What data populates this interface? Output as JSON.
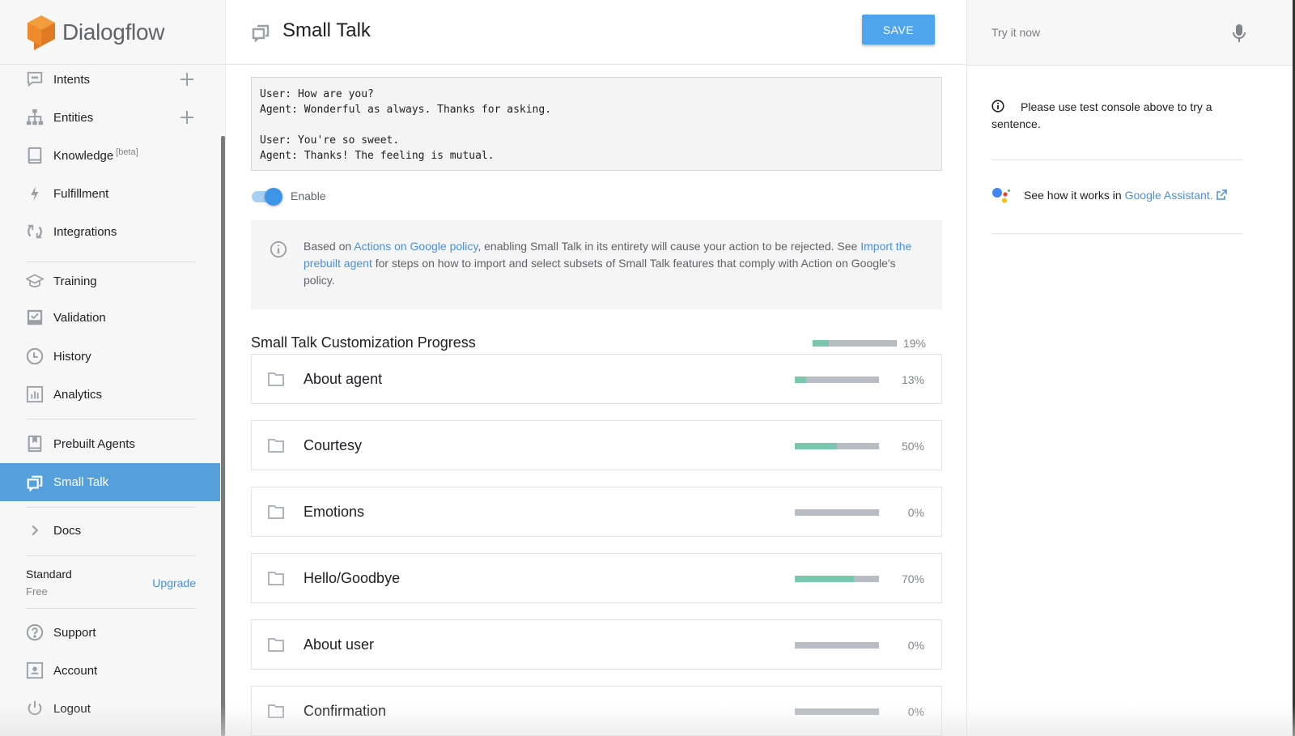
{
  "app": {
    "name": "Dialogflow",
    "brand_color": "#f0842c"
  },
  "sidebar": {
    "items": [
      {
        "label": "Intents",
        "icon": "chat-icon",
        "has_add": true
      },
      {
        "label": "Entities",
        "icon": "hierarchy-icon",
        "has_add": true
      },
      {
        "label": "Knowledge",
        "badge": "[beta]",
        "icon": "book-icon"
      },
      {
        "label": "Fulfillment",
        "icon": "bolt-icon"
      },
      {
        "label": "Integrations",
        "icon": "sync-icon"
      },
      {
        "label": "Training",
        "icon": "graduation-cap-icon"
      },
      {
        "label": "Validation",
        "icon": "checkbox-icon"
      },
      {
        "label": "History",
        "icon": "clock-icon"
      },
      {
        "label": "Analytics",
        "icon": "bar-chart-icon"
      },
      {
        "label": "Prebuilt Agents",
        "icon": "bookmark-book-icon"
      },
      {
        "label": "Small Talk",
        "icon": "small-talk-icon",
        "active": true
      },
      {
        "label": "Docs",
        "icon": "chevron-right-icon"
      },
      {
        "label": "Support",
        "icon": "help-circle-icon"
      },
      {
        "label": "Account",
        "icon": "account-box-icon"
      },
      {
        "label": "Logout",
        "icon": "power-icon"
      }
    ],
    "plan": {
      "name": "Standard",
      "tier": "Free",
      "upgrade_label": "Upgrade"
    },
    "active_color": "#55a0dc"
  },
  "header": {
    "title": "Small Talk",
    "save_label": "SAVE"
  },
  "example": {
    "text": "User: How are you?\nAgent: Wonderful as always. Thanks for asking.\n\nUser: You're so sweet.\nAgent: Thanks! The feeling is mutual."
  },
  "toggle": {
    "label": "Enable",
    "on": true
  },
  "notice": {
    "prefix": "Based on ",
    "link1": "Actions on Google policy",
    "middle": ", enabling Small Talk in its entirety will cause your action to be rejected. See ",
    "link2": "Import the prebuilt agent",
    "suffix": " for steps on how to import and select subsets of Small Talk features that comply with Action on Google's policy."
  },
  "progress": {
    "title": "Small Talk Customization Progress",
    "overall_percent": 19,
    "overall_label": "19%",
    "fill_color": "#79c7ae",
    "track_color": "#b8bcc4",
    "categories": [
      {
        "name": "About agent",
        "percent": 13,
        "label": "13%"
      },
      {
        "name": "Courtesy",
        "percent": 50,
        "label": "50%"
      },
      {
        "name": "Emotions",
        "percent": 0,
        "label": "0%"
      },
      {
        "name": "Hello/Goodbye",
        "percent": 70,
        "label": "70%"
      },
      {
        "name": "About user",
        "percent": 0,
        "label": "0%"
      },
      {
        "name": "Confirmation",
        "percent": 0,
        "label": "0%"
      }
    ]
  },
  "right_panel": {
    "try_placeholder": "Try it now",
    "info_text": "Please use test console above to try a sentence.",
    "ga_prefix": "See how it works in",
    "ga_link": "Google Assistant."
  }
}
